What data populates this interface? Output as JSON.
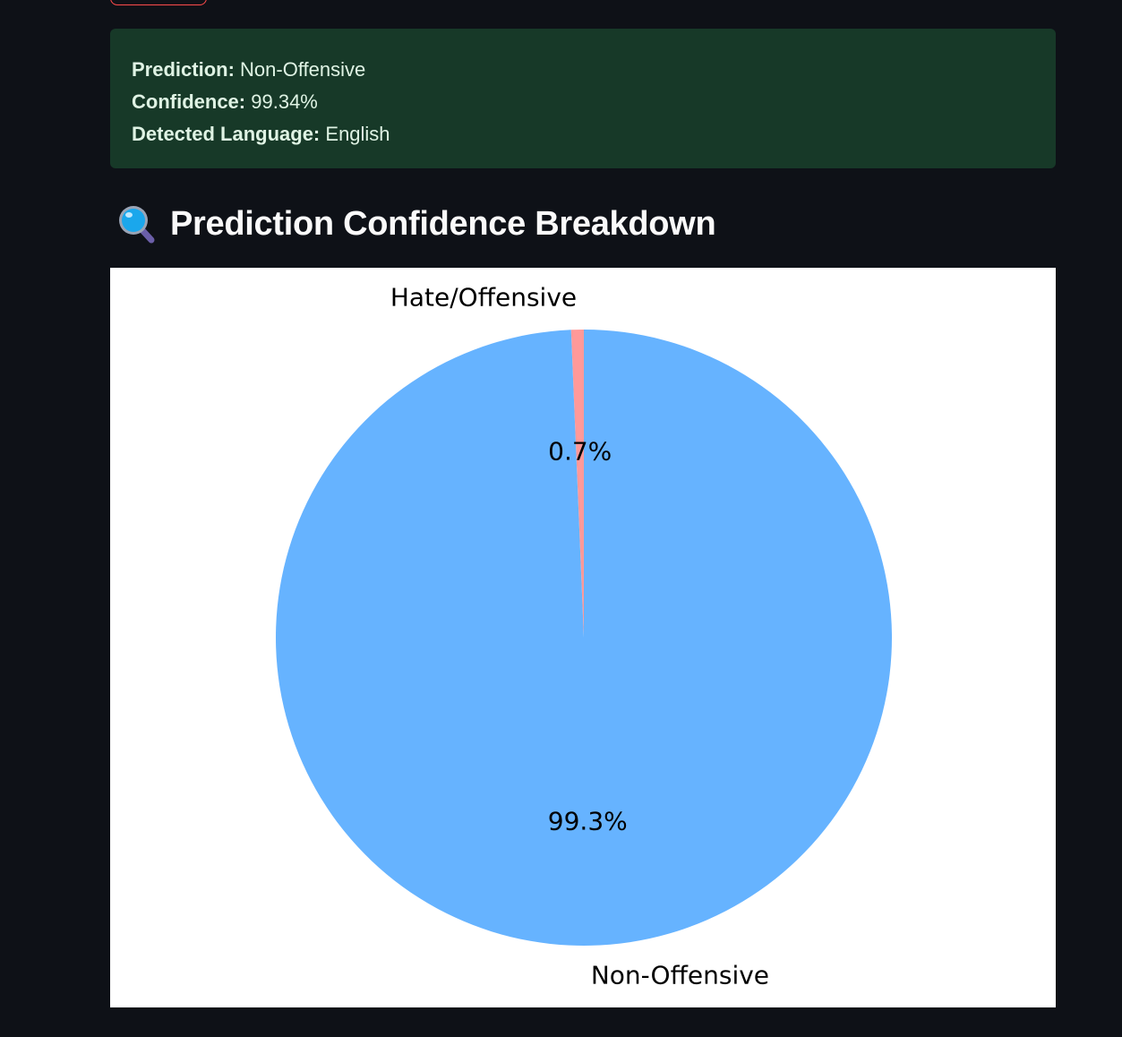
{
  "result": {
    "prediction_label": "Prediction:",
    "prediction_value": "Non-Offensive",
    "confidence_label": "Confidence:",
    "confidence_value": "99.34%",
    "language_label": "Detected Language:",
    "language_value": "English"
  },
  "breakdown": {
    "icon": "magnifier-icon",
    "title": "Prediction Confidence Breakdown"
  },
  "colors": {
    "page_background": "#0e1117",
    "result_background": "#173928",
    "non_offensive": "#66b3ff",
    "hate_offensive": "#ff9999"
  },
  "chart_data": {
    "type": "pie",
    "labels": [
      "Hate/Offensive",
      "Non-Offensive"
    ],
    "values": [
      0.66,
      99.34
    ],
    "percent_labels": [
      "0.7%",
      "99.3%"
    ],
    "colors": [
      "#ff9999",
      "#66b3ff"
    ],
    "start_angle": 90,
    "direction": "counterclockwise"
  }
}
